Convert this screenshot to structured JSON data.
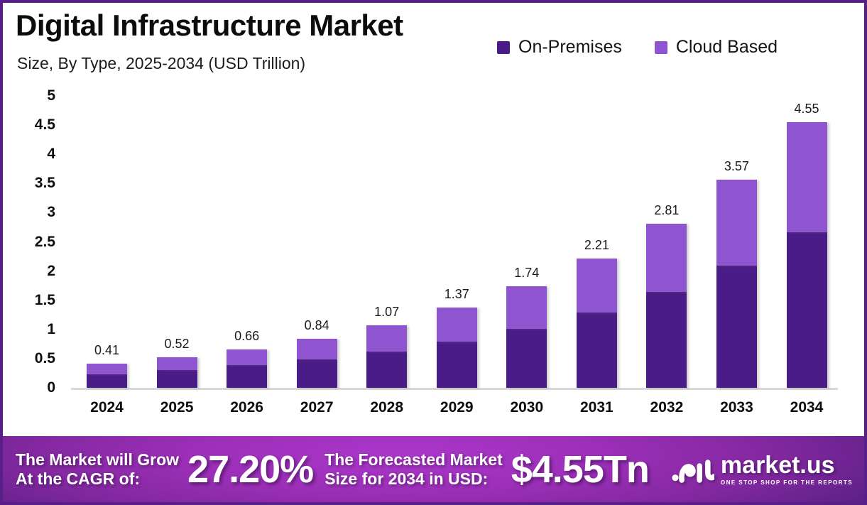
{
  "header": {
    "title": "Digital Infrastructure Market",
    "subtitle": "Size, By Type, 2025-2034 (USD Trillion)"
  },
  "legend": {
    "items": [
      {
        "label": "On-Premises",
        "color": "#4a1c87"
      },
      {
        "label": "Cloud Based",
        "color": "#8f55d0"
      }
    ]
  },
  "chart_data": {
    "type": "bar",
    "stacked": true,
    "title": "Digital Infrastructure Market Size, By Type, 2025-2034 (USD Trillion)",
    "unit": "USD Trillion",
    "categories": [
      "2024",
      "2025",
      "2026",
      "2027",
      "2028",
      "2029",
      "2030",
      "2031",
      "2032",
      "2033",
      "2034"
    ],
    "series": [
      {
        "name": "On-Premises",
        "color": "#4a1c87",
        "values": [
          0.23,
          0.31,
          0.39,
          0.49,
          0.62,
          0.79,
          1.01,
          1.29,
          1.64,
          2.09,
          2.66
        ]
      },
      {
        "name": "Cloud Based",
        "color": "#8f55d0",
        "values": [
          0.18,
          0.21,
          0.27,
          0.35,
          0.45,
          0.58,
          0.73,
          0.92,
          1.17,
          1.48,
          1.89
        ]
      }
    ],
    "totals": [
      0.41,
      0.52,
      0.66,
      0.84,
      1.07,
      1.37,
      1.74,
      2.21,
      2.81,
      3.57,
      4.55
    ],
    "total_labels": [
      "0.41",
      "0.52",
      "0.66",
      "0.84",
      "1.07",
      "1.37",
      "1.74",
      "2.21",
      "2.81",
      "3.57",
      "4.55"
    ],
    "yticks": [
      "5",
      "4.5",
      "4",
      "3.5",
      "3",
      "2.5",
      "2",
      "1.5",
      "1",
      "0.5",
      "0"
    ],
    "ylim": [
      0,
      5
    ],
    "grid": false,
    "legend_position": "top-right"
  },
  "banner": {
    "cagr_label_line1": "The Market will Grow",
    "cagr_label_line2": "At the CAGR of:",
    "cagr_value": "27.20%",
    "forecast_label_line1": "The Forecasted Market",
    "forecast_label_line2": "Size for 2034 in USD:",
    "forecast_value": "$4.55Tn",
    "brand_name": "market.us",
    "brand_tagline": "ONE STOP SHOP FOR THE REPORTS"
  },
  "colors": {
    "frame_border": "#571f87",
    "on_premises": "#4a1c87",
    "cloud_based": "#8f55d0",
    "axis_line": "#d8d8d8",
    "banner_center": "#9c2fb8",
    "banner_edge": "#3f1a6d",
    "text_dark": "#0c0c0c",
    "text_white": "#ffffff"
  }
}
